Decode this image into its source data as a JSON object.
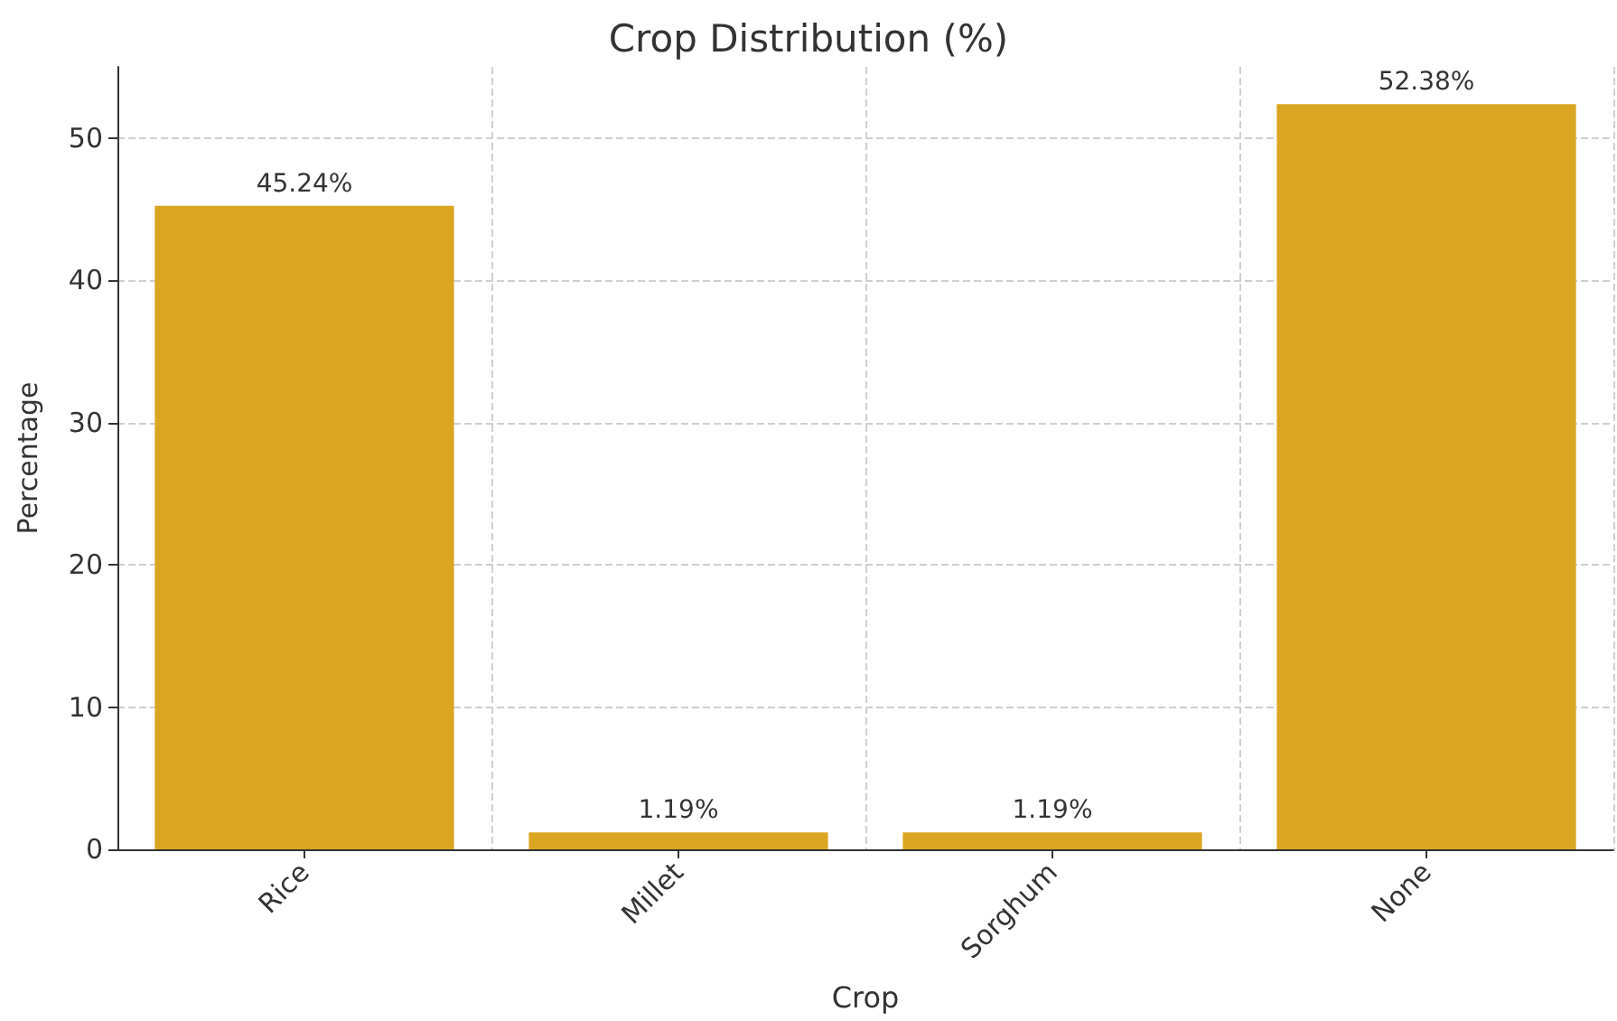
{
  "chart_data": {
    "type": "bar",
    "title": "Crop Distribution (%)",
    "xlabel": "Crop",
    "ylabel": "Percentage",
    "categories": [
      "Rice",
      "Millet",
      "Sorghum",
      "None"
    ],
    "values": [
      45.24,
      1.19,
      1.19,
      52.38
    ],
    "value_labels": [
      "45.24%",
      "1.19%",
      "1.19%",
      "52.38%"
    ],
    "color": "#daa520",
    "ylim": [
      0,
      55
    ],
    "yticks": [
      0,
      10,
      20,
      30,
      40,
      50
    ],
    "grid": true,
    "line_style": "dashed"
  }
}
